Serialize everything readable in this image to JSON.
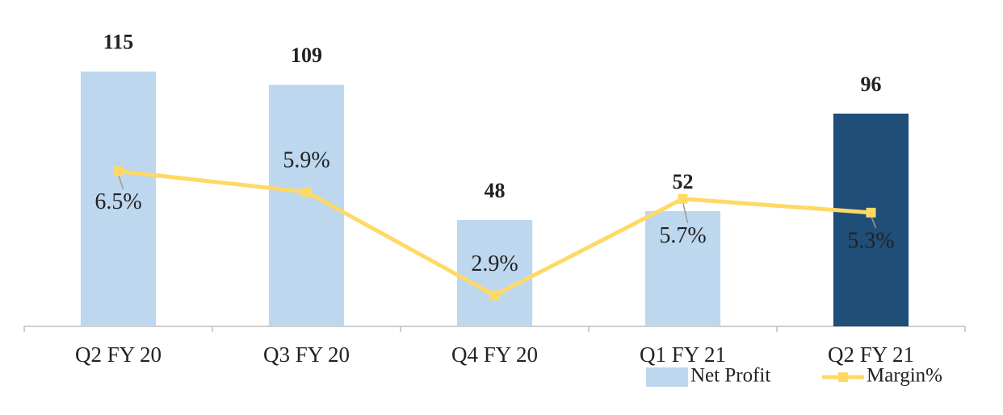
{
  "chart_data": {
    "type": "bar-line",
    "categories": [
      "Q2 FY 20",
      "Q3 FY 20",
      "Q4 FY 20",
      "Q1 FY 21",
      "Q2 FY 21"
    ],
    "series": [
      {
        "name": "Net Profit",
        "type": "bar",
        "color": "#bdd7ee",
        "colors": [
          "#bdd7ee",
          "#bdd7ee",
          "#bdd7ee",
          "#bdd7ee",
          "#1f4e79"
        ],
        "values": [
          115,
          109,
          48,
          52,
          96
        ]
      },
      {
        "name": "Margin%",
        "type": "line",
        "axis": "y2",
        "color": "#ffd966",
        "values": [
          6.5,
          5.9,
          2.9,
          5.7,
          5.3
        ],
        "value_labels": [
          "6.5%",
          "5.9%",
          "2.9%",
          "5.7%",
          "5.3%"
        ]
      }
    ],
    "ylim": [
      0,
      140
    ],
    "y2lim": [
      2,
      11
    ],
    "legend": "bottom-right"
  }
}
